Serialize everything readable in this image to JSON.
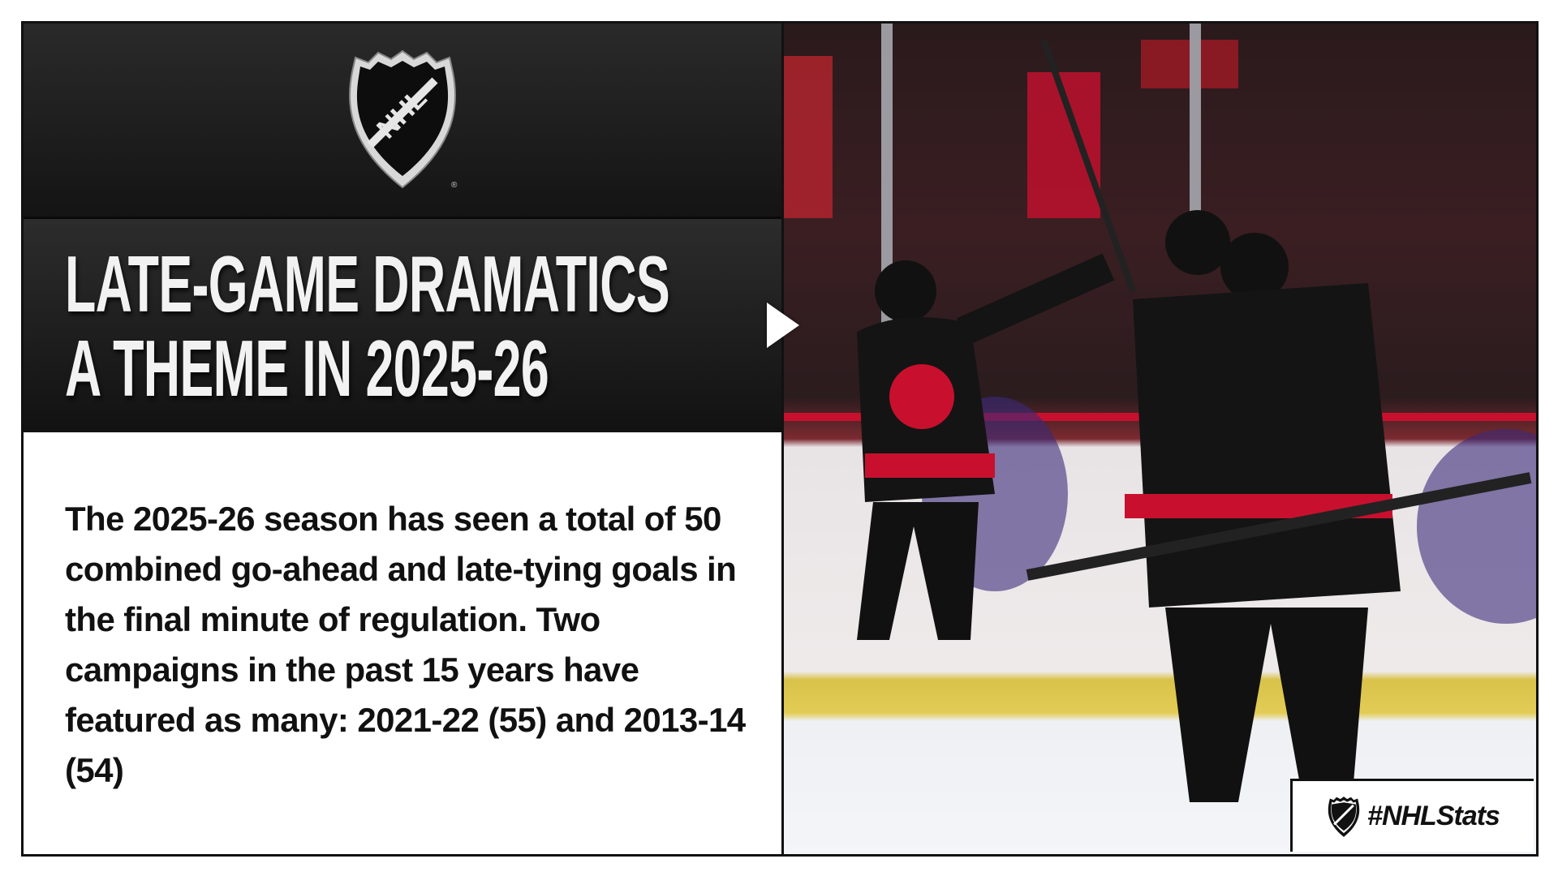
{
  "header": {
    "logo": "NHL shield logo",
    "logo_text": "NHL"
  },
  "title": {
    "line1": "LATE-GAME DRAMATICS",
    "line2": "A THEME IN 2025-26"
  },
  "body": {
    "paragraph": "The 2025-26 season has seen a total of 50 combined go-ahead and late-tying goals in the final minute of regulation. Two campaigns in the past 15 years have featured as many: 2021-22 (55) and 2013-14 (54)"
  },
  "photo": {
    "description_icon": "play-icon"
  },
  "footer": {
    "hashtag": "#NHLStats"
  },
  "colors": {
    "dark_band": "#1c1c1c",
    "text_light": "#f2f2f2",
    "text_dark": "#111111",
    "accent_red": "#c8102e"
  }
}
